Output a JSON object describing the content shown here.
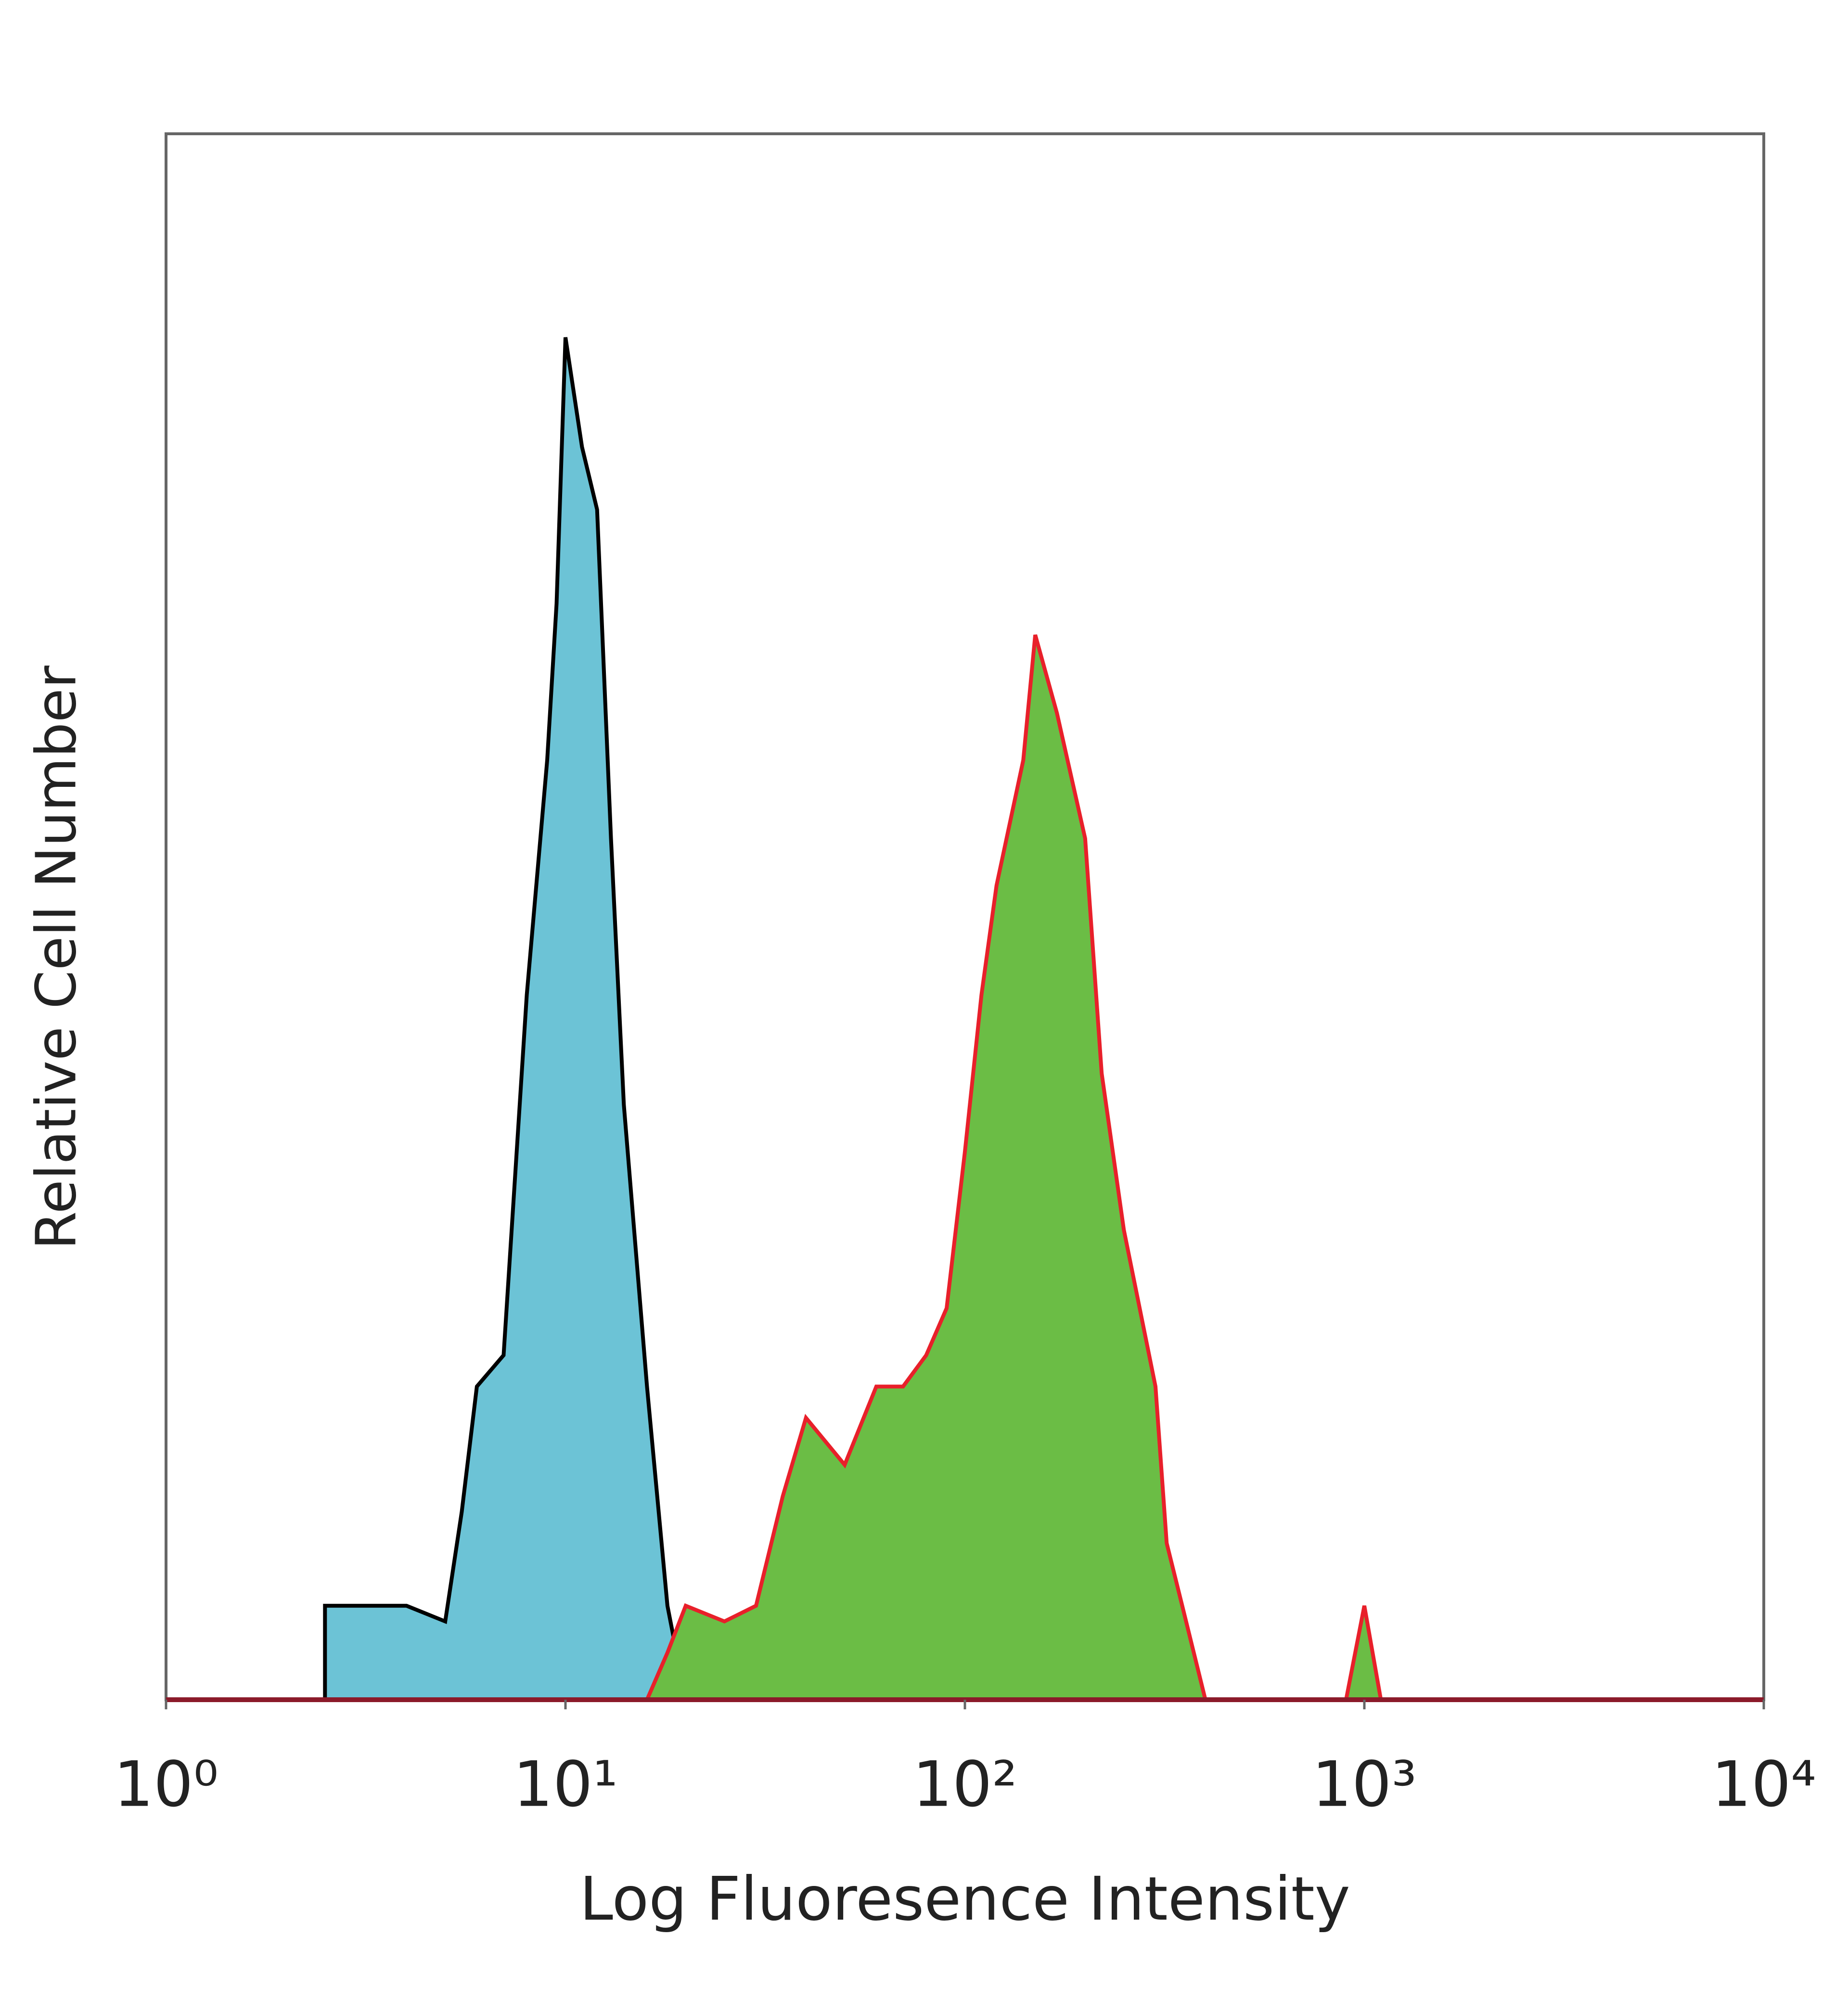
{
  "chart_data": {
    "type": "area",
    "x_label": "Log Fluoresence Intensity",
    "y_label": "Relative Cell Number",
    "x": [
      2.5,
      3,
      4,
      5,
      5.5,
      6,
      7,
      8,
      9,
      9.5,
      10,
      11,
      12,
      13,
      14,
      16,
      18,
      20,
      25,
      30,
      35,
      40,
      50,
      60,
      70,
      80,
      90,
      100,
      110,
      120,
      140,
      150,
      170,
      200,
      220,
      250,
      300,
      320,
      350,
      400,
      900,
      1000,
      1100
    ],
    "series": [
      {
        "color": "#6cc3d6",
        "edge_color": "#000000",
        "values": [
          6,
          6,
          6,
          5,
          12,
          20,
          22,
          45,
          60,
          70,
          87,
          80,
          76,
          55,
          38,
          20,
          6,
          0,
          null,
          null,
          null,
          null,
          null,
          null,
          null,
          null,
          null,
          null,
          null,
          null,
          null,
          null,
          null,
          null,
          null,
          null,
          null,
          null,
          null,
          null,
          null,
          null,
          null
        ]
      },
      {
        "color": "#6bbd45",
        "edge_color": "#e8202a",
        "values": [
          null,
          null,
          null,
          null,
          null,
          null,
          null,
          null,
          null,
          null,
          null,
          null,
          null,
          null,
          null,
          0,
          3,
          6,
          5,
          6,
          13,
          18,
          15,
          20,
          20,
          22,
          25,
          35,
          45,
          52,
          60,
          68,
          63,
          55,
          40,
          30,
          20,
          10,
          6,
          0,
          0,
          6,
          0
        ]
      }
    ],
    "xlim": [
      1,
      10000
    ],
    "xscale": "log",
    "xticks": [
      {
        "value": 1,
        "label": "10⁰"
      },
      {
        "value": 10,
        "label": "10¹"
      },
      {
        "value": 100,
        "label": "10²"
      },
      {
        "value": 1000,
        "label": "10³"
      },
      {
        "value": 10000,
        "label": "10⁴"
      }
    ],
    "ylim": [
      0,
      100
    ]
  }
}
